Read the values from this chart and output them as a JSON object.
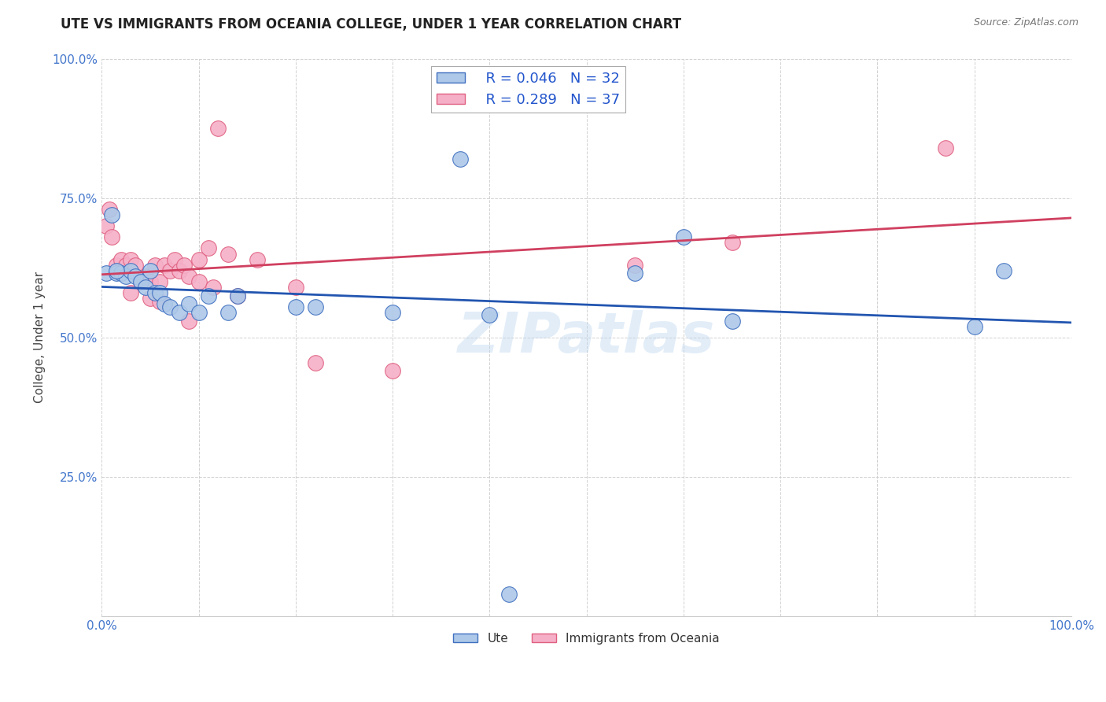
{
  "title": "UTE VS IMMIGRANTS FROM OCEANIA COLLEGE, UNDER 1 YEAR CORRELATION CHART",
  "source": "Source: ZipAtlas.com",
  "ylabel": "College, Under 1 year",
  "blue_R": "0.046",
  "blue_N": "32",
  "pink_R": "0.289",
  "pink_N": "37",
  "blue_color": "#adc8e8",
  "pink_color": "#f5b0c8",
  "blue_edge_color": "#4070c0",
  "pink_edge_color": "#e06080",
  "blue_line_color": "#2255b0",
  "pink_line_color": "#d04060",
  "watermark": "ZIPatlas",
  "blue_x": [
    0.005,
    0.01,
    0.015,
    0.02,
    0.025,
    0.03,
    0.035,
    0.04,
    0.045,
    0.05,
    0.055,
    0.06,
    0.065,
    0.07,
    0.08,
    0.09,
    0.1,
    0.11,
    0.13,
    0.14,
    0.2,
    0.22,
    0.37,
    0.4,
    0.55,
    0.6,
    0.65,
    0.9,
    0.93,
    0.015,
    0.42,
    0.3
  ],
  "blue_y": [
    0.615,
    0.72,
    0.615,
    0.615,
    0.61,
    0.62,
    0.61,
    0.6,
    0.59,
    0.62,
    0.58,
    0.58,
    0.56,
    0.555,
    0.545,
    0.56,
    0.545,
    0.575,
    0.545,
    0.575,
    0.555,
    0.555,
    0.82,
    0.54,
    0.615,
    0.68,
    0.53,
    0.52,
    0.62,
    0.62,
    0.04,
    0.545
  ],
  "pink_x": [
    0.005,
    0.008,
    0.01,
    0.015,
    0.02,
    0.025,
    0.03,
    0.035,
    0.04,
    0.045,
    0.05,
    0.055,
    0.06,
    0.065,
    0.07,
    0.075,
    0.08,
    0.085,
    0.09,
    0.1,
    0.1,
    0.11,
    0.115,
    0.12,
    0.13,
    0.14,
    0.16,
    0.2,
    0.22,
    0.3,
    0.55,
    0.65,
    0.87,
    0.03,
    0.05,
    0.06,
    0.09
  ],
  "pink_y": [
    0.7,
    0.73,
    0.68,
    0.63,
    0.64,
    0.63,
    0.64,
    0.63,
    0.6,
    0.61,
    0.6,
    0.63,
    0.6,
    0.63,
    0.62,
    0.64,
    0.62,
    0.63,
    0.61,
    0.6,
    0.64,
    0.66,
    0.59,
    0.875,
    0.65,
    0.575,
    0.64,
    0.59,
    0.455,
    0.44,
    0.63,
    0.67,
    0.84,
    0.58,
    0.57,
    0.565,
    0.53
  ],
  "xlim": [
    0.0,
    1.0
  ],
  "ylim": [
    0.0,
    1.0
  ],
  "xticks": [
    0.0,
    0.1,
    0.2,
    0.3,
    0.4,
    0.5,
    0.6,
    0.7,
    0.8,
    0.9,
    1.0
  ],
  "yticks": [
    0.0,
    0.25,
    0.5,
    0.75,
    1.0
  ],
  "xtick_labels_show": [
    "0.0%",
    "100.0%"
  ],
  "ytick_labels": [
    "",
    "25.0%",
    "50.0%",
    "75.0%",
    "100.0%"
  ]
}
